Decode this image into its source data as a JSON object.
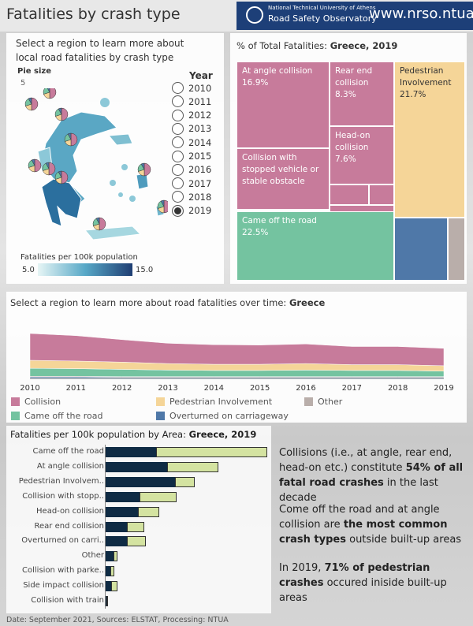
{
  "header": {
    "title": "Fatalities by crash type",
    "org_line1": "National Technical University of Athens",
    "org_line2": "Road Safety Observatory",
    "url": "www.nrso.ntua.gr"
  },
  "map_panel": {
    "instruction": "Select a region to learn more about local road fatalities by crash type",
    "pie_size_label": "Pie size",
    "pie_size_value": "5",
    "year_title": "Year",
    "years": [
      "2010",
      "2011",
      "2012",
      "2013",
      "2014",
      "2015",
      "2016",
      "2017",
      "2018",
      "2019"
    ],
    "selected_year": "2019",
    "legend_title": "Fatalities per 100k population",
    "legend_min": "5.0",
    "legend_max": "15.0"
  },
  "treemap": {
    "title_prefix": "% of Total Fatalities: ",
    "title_bold": "Greece, 2019",
    "colors": {
      "collision": "#c77b9b",
      "pedestrian": "#f5d598",
      "came_off": "#74c3a0",
      "overturned": "#4f78a8",
      "other": "#b9aeaa"
    },
    "cells": {
      "at_angle": {
        "label": "At angle collision",
        "value": "16.9%"
      },
      "rear_end": {
        "label": "Rear end collision",
        "value": "8.3%"
      },
      "head_on": {
        "label": "Head-on collision",
        "value": "7.6%"
      },
      "stopped": {
        "label": "Collision with stopped vehicle or stable obstacle"
      },
      "pedestrian": {
        "label": "Pedestrian Involvement",
        "value": "21.7%"
      },
      "came_off": {
        "label": "Came off the road",
        "value": "22.5%"
      }
    }
  },
  "area_chart": {
    "title_prefix": "Select a region to learn more about road fatalities over time: ",
    "title_bold": "Greece",
    "years": [
      "2010",
      "2011",
      "2012",
      "2013",
      "2014",
      "2015",
      "2016",
      "2017",
      "2018",
      "2019"
    ],
    "legend": [
      {
        "name": "Collision",
        "color": "#c77b9b"
      },
      {
        "name": "Pedestrian Involvement",
        "color": "#f5d598"
      },
      {
        "name": "Other",
        "color": "#b9aeaa"
      },
      {
        "name": "Came off the road",
        "color": "#74c3a0"
      },
      {
        "name": "Overturned on carriageway",
        "color": "#4f78a8"
      }
    ]
  },
  "bar_chart": {
    "title_prefix": "Fatalities per 100k population by Area: ",
    "title_bold": "Greece,  2019",
    "dark_color": "#0f2b44",
    "light_color": "#d4e3a1",
    "categories": [
      "Came off the road",
      "At angle collision",
      "Pedestrian Involvem..",
      "Collision with stopp..",
      "Head-on collision",
      "Rear end collision",
      "Overturned on carri..",
      "Other",
      "Collision with parke..",
      "Side impact collision",
      "Collision with train"
    ]
  },
  "chart_data": [
    {
      "type": "area",
      "title": "Select a region to learn more about road fatalities over time: Greece",
      "x": [
        2010,
        2011,
        2012,
        2013,
        2014,
        2015,
        2016,
        2017,
        2018,
        2019
      ],
      "series": [
        {
          "name": "Overturned on carriageway",
          "values": [
            4,
            4,
            3,
            3,
            3,
            3,
            3,
            3,
            3,
            3
          ]
        },
        {
          "name": "Other",
          "values": [
            2,
            2,
            2,
            2,
            2,
            2,
            2,
            2,
            2,
            2
          ]
        },
        {
          "name": "Came off the road",
          "values": [
            22,
            21,
            20,
            18,
            17,
            17,
            18,
            17,
            17,
            15
          ]
        },
        {
          "name": "Pedestrian Involvement",
          "values": [
            22,
            21,
            20,
            18,
            17,
            17,
            18,
            16,
            16,
            15
          ]
        },
        {
          "name": "Collision",
          "values": [
            74,
            70,
            62,
            56,
            54,
            53,
            54,
            50,
            50,
            48
          ]
        }
      ]
    },
    {
      "type": "bar",
      "title": "Fatalities per 100k population by Area: Greece,  2019",
      "categories": [
        "Came off the road",
        "At angle collision",
        "Pedestrian Involvem..",
        "Collision with stopp..",
        "Head-on collision",
        "Rear end collision",
        "Overturned on carri..",
        "Other",
        "Collision with parke..",
        "Side impact collision",
        "Collision with train"
      ],
      "series": [
        {
          "values": [
            1.55,
            1.9,
            2.15,
            1.05,
            1.0,
            0.65,
            0.65,
            0.25,
            0.15,
            0.18,
            0.02
          ]
        },
        {
          "values": [
            3.45,
            1.6,
            0.6,
            1.15,
            0.65,
            0.55,
            0.6,
            0.12,
            0.12,
            0.18,
            0.0
          ]
        }
      ]
    }
  ],
  "insights": {
    "p1": "Collisions (i.e., at angle, rear end, head-on etc.) constitute",
    "p1_bold": "54% of all fatal road crashes",
    "p1_end": "in the last decade",
    "p2": "Come off the road and at angle collision are",
    "p2_bold": "the most common crash types",
    "p2_end": "outside built-up areas",
    "p3": "In 2019,",
    "p3_bold": "71% of pedestrian crashes",
    "p3_end": "occured iniside built-up areas"
  },
  "footer": "Date: September 2021, Sources: ELSTAT, Processing: NTUA"
}
